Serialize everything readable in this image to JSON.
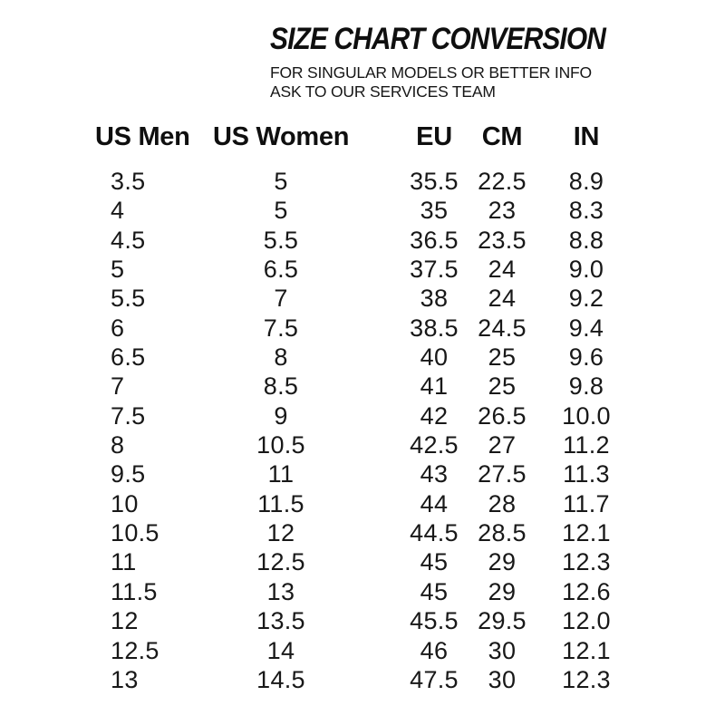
{
  "colors": {
    "background": "#ffffff",
    "text": "#121212"
  },
  "header": {
    "title": "SIZE CHART CONVERSION",
    "subtitle_line1": "FOR SINGULAR MODELS OR BETTER INFO",
    "subtitle_line2": "ASK TO OUR SERVICES TEAM"
  },
  "table": {
    "columns": [
      "US Men",
      "US Women",
      "EU",
      "CM",
      "IN"
    ],
    "rows": [
      [
        "3.5",
        "5",
        "35.5",
        "22.5",
        "8.9"
      ],
      [
        "4",
        "5",
        "35",
        "23",
        "8.3"
      ],
      [
        "4.5",
        "5.5",
        "36.5",
        "23.5",
        "8.8"
      ],
      [
        "5",
        "6.5",
        "37.5",
        "24",
        "9.0"
      ],
      [
        "5.5",
        "7",
        "38",
        "24",
        "9.2"
      ],
      [
        "6",
        "7.5",
        "38.5",
        "24.5",
        "9.4"
      ],
      [
        "6.5",
        "8",
        "40",
        "25",
        "9.6"
      ],
      [
        "7",
        "8.5",
        "41",
        "25",
        "9.8"
      ],
      [
        "7.5",
        "9",
        "42",
        "26.5",
        "10.0"
      ],
      [
        "8",
        "10.5",
        "42.5",
        "27",
        "11.2"
      ],
      [
        "9.5",
        "11",
        "43",
        "27.5",
        "11.3"
      ],
      [
        "10",
        "11.5",
        "44",
        "28",
        "11.7"
      ],
      [
        "10.5",
        "12",
        "44.5",
        "28.5",
        "12.1"
      ],
      [
        "11",
        "12.5",
        "45",
        "29",
        "12.3"
      ],
      [
        "11.5",
        "13",
        "45",
        "29",
        "12.6"
      ],
      [
        "12",
        "13.5",
        "45.5",
        "29.5",
        "12.0"
      ],
      [
        "12.5",
        "14",
        "46",
        "30",
        "12.1"
      ],
      [
        "13",
        "14.5",
        "47.5",
        "30",
        "12.3"
      ]
    ]
  }
}
